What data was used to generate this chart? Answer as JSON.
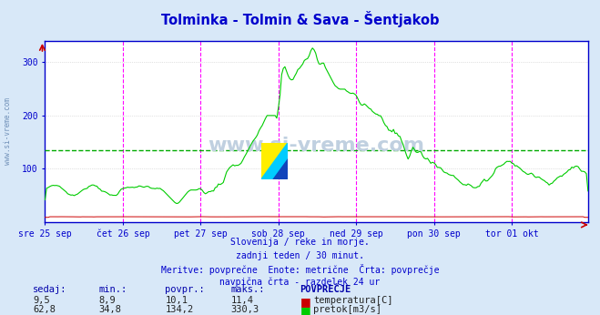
{
  "title": "Tolminka - Tolmin & Sava - Šentjakob",
  "title_color": "#0000cc",
  "bg_color": "#d8e8f8",
  "plot_bg_color": "#ffffff",
  "grid_color": "#c8c8c8",
  "axis_color": "#0000cc",
  "vline_color": "#ff00ff",
  "avg_line_color": "#00aa00",
  "avg_line_value": 134.2,
  "flow_color": "#00cc00",
  "temp_color": "#cc0000",
  "subtitle_lines": [
    "Slovenija / reke in morje.",
    "zadnji teden / 30 minut.",
    "Meritve: povprečne  Enote: metrične  Črta: povprečje",
    "navpična črta - razdelek 24 ur"
  ],
  "xlabel_ticks": [
    "sre 25 sep",
    "čet 26 sep",
    "pet 27 sep",
    "sob 28 sep",
    "ned 29 sep",
    "pon 30 sep",
    "tor 01 okt"
  ],
  "ylim": [
    0,
    340
  ],
  "yticks": [
    100,
    200,
    300
  ],
  "x_vlines": [
    48,
    96,
    144,
    192,
    240,
    288
  ],
  "n_points": 336,
  "watermark": "www.si-vreme.com",
  "left_label": "www.si-vreme.com",
  "table_header_color": "#0000aa",
  "legend_temp_color": "#cc0000",
  "legend_flow_color": "#00cc00",
  "sedaj_temp": "9,5",
  "min_temp": "8,9",
  "povpr_temp": "10,1",
  "maks_temp": "11,4",
  "sedaj_flow": "62,8",
  "min_flow": "34,8",
  "povpr_flow": "134,2",
  "maks_flow": "330,3"
}
